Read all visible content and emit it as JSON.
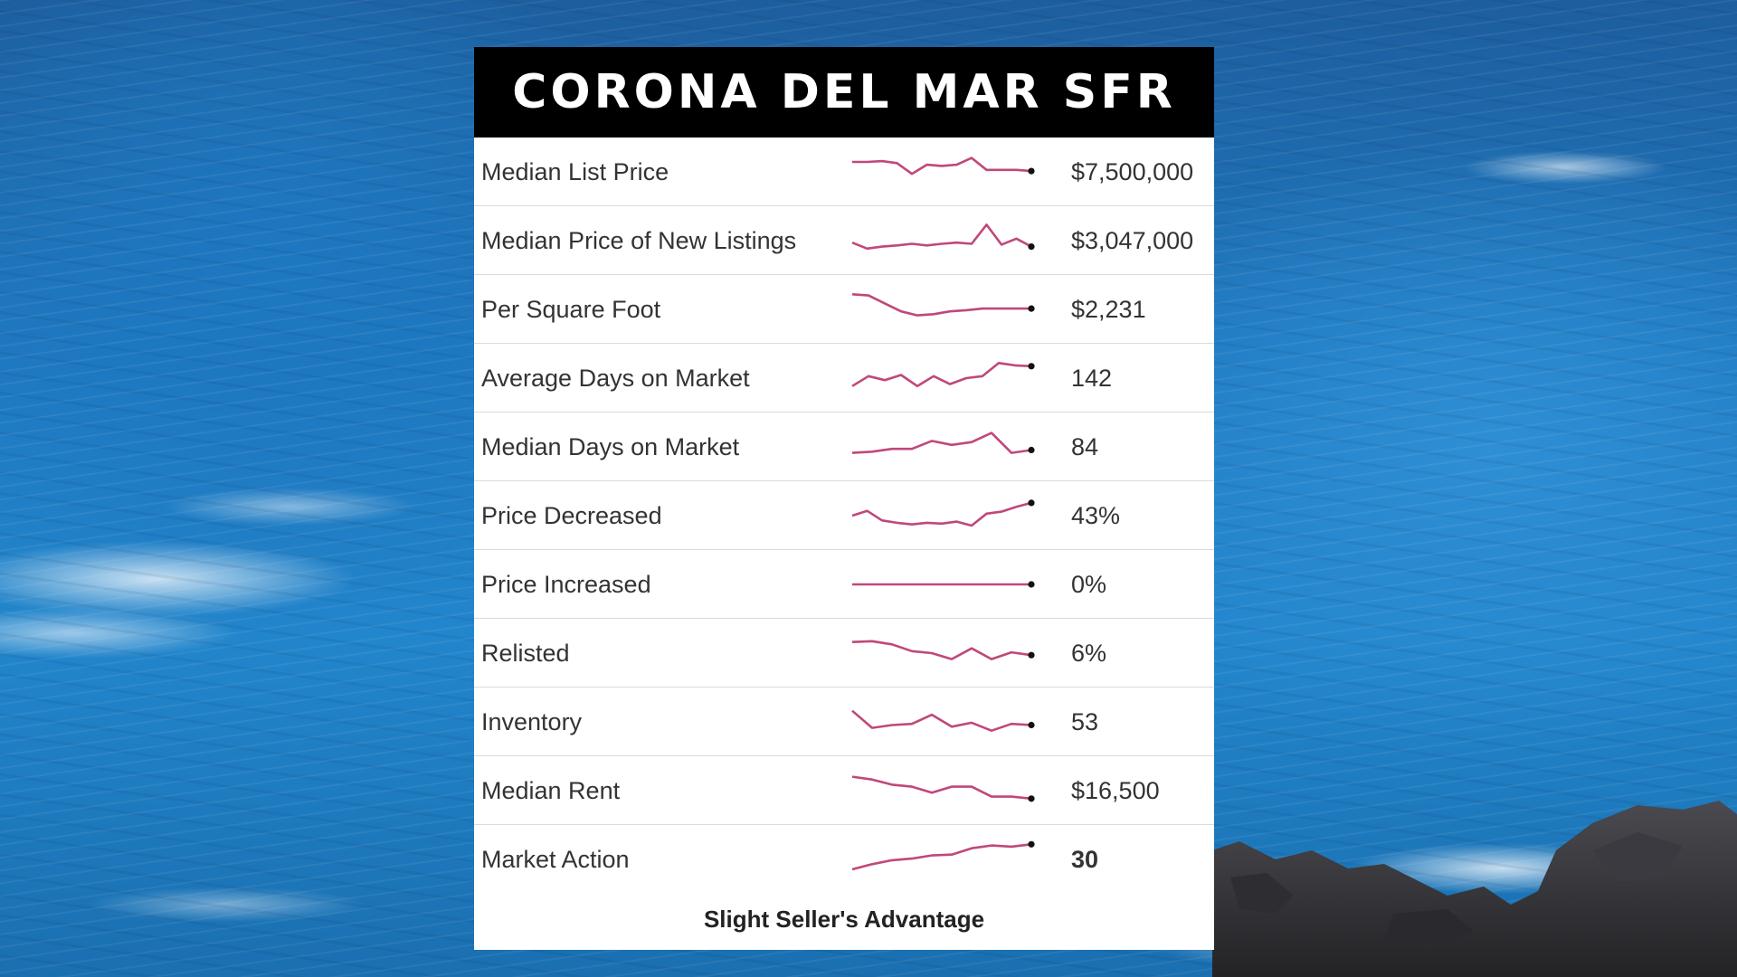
{
  "title": "CORONA DEL MAR SFR",
  "colors": {
    "sparkline": "#c0487a",
    "endpoint": "#111111",
    "title_bg": "#000000",
    "title_fg": "#ffffff"
  },
  "rows": [
    {
      "label": "Median List Price",
      "value": "$7,500,000",
      "trend": [
        0.75,
        0.75,
        0.77,
        0.72,
        0.45,
        0.68,
        0.65,
        0.68,
        0.85,
        0.55,
        0.55,
        0.55,
        0.52
      ]
    },
    {
      "label": "Median Price of New Listings",
      "value": "$3,047,000",
      "trend": [
        0.45,
        0.3,
        0.35,
        0.38,
        0.42,
        0.38,
        0.42,
        0.45,
        0.42,
        0.9,
        0.4,
        0.55,
        0.35
      ]
    },
    {
      "label": "Per Square Foot",
      "value": "$2,231",
      "trend": [
        0.88,
        0.85,
        0.65,
        0.45,
        0.35,
        0.38,
        0.45,
        0.48,
        0.52,
        0.52,
        0.52,
        0.52
      ]
    },
    {
      "label": "Average Days on Market",
      "value": "142",
      "trend": [
        0.3,
        0.55,
        0.45,
        0.58,
        0.3,
        0.55,
        0.35,
        0.5,
        0.55,
        0.88,
        0.82,
        0.8
      ]
    },
    {
      "label": "Median Days on Market",
      "value": "84",
      "trend": [
        0.35,
        0.38,
        0.45,
        0.45,
        0.65,
        0.55,
        0.62,
        0.85,
        0.35,
        0.42
      ]
    },
    {
      "label": "Price Decreased",
      "value": "43%",
      "trend": [
        0.5,
        0.62,
        0.38,
        0.32,
        0.28,
        0.32,
        0.3,
        0.35,
        0.25,
        0.55,
        0.6,
        0.72,
        0.82
      ]
    },
    {
      "label": "Price Increased",
      "value": "0%",
      "trend": [
        0.5,
        0.5,
        0.5,
        0.5,
        0.5,
        0.5,
        0.5,
        0.5,
        0.5,
        0.5,
        0.5,
        0.5
      ]
    },
    {
      "label": "Relisted",
      "value": "6%",
      "trend": [
        0.78,
        0.8,
        0.72,
        0.55,
        0.5,
        0.35,
        0.62,
        0.35,
        0.52,
        0.45
      ]
    },
    {
      "label": "Inventory",
      "value": "53",
      "trend": [
        0.78,
        0.35,
        0.42,
        0.45,
        0.68,
        0.38,
        0.48,
        0.28,
        0.45,
        0.42
      ]
    },
    {
      "label": "Median Rent",
      "value": "$16,500",
      "trend": [
        0.85,
        0.78,
        0.65,
        0.6,
        0.45,
        0.6,
        0.6,
        0.35,
        0.35,
        0.3
      ]
    },
    {
      "label": "Market Action",
      "value": "30",
      "bold": true,
      "trend": [
        0.25,
        0.38,
        0.48,
        0.52,
        0.6,
        0.62,
        0.78,
        0.85,
        0.82,
        0.88
      ]
    }
  ],
  "footer": "Slight Seller's Advantage"
}
